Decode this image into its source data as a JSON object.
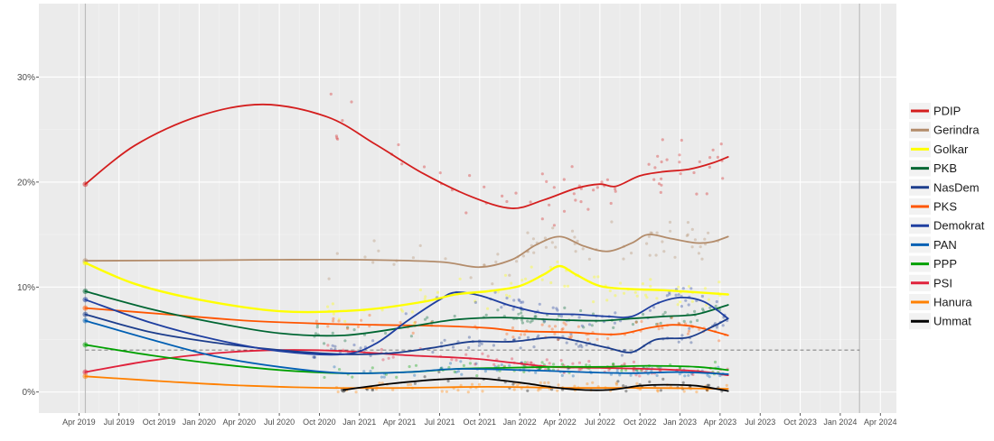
{
  "chart_data": {
    "type": "line",
    "title": "",
    "xlabel": "",
    "ylabel": "",
    "x_range_years": [
      2019.0,
      2024.35
    ],
    "y_range_percent": [
      -2,
      37
    ],
    "grid": true,
    "legend_position": "right",
    "x_ticks": [
      {
        "t": 2019.25,
        "label": "Apr 2019"
      },
      {
        "t": 2019.5,
        "label": "Jul 2019"
      },
      {
        "t": 2019.75,
        "label": "Oct 2019"
      },
      {
        "t": 2020.0,
        "label": "Jan 2020"
      },
      {
        "t": 2020.25,
        "label": "Apr 2020"
      },
      {
        "t": 2020.5,
        "label": "Jul 2020"
      },
      {
        "t": 2020.75,
        "label": "Oct 2020"
      },
      {
        "t": 2021.0,
        "label": "Jan 2021"
      },
      {
        "t": 2021.25,
        "label": "Apr 2021"
      },
      {
        "t": 2021.5,
        "label": "Jul 2021"
      },
      {
        "t": 2021.75,
        "label": "Oct 2021"
      },
      {
        "t": 2022.0,
        "label": "Jan 2022"
      },
      {
        "t": 2022.25,
        "label": "Apr 2022"
      },
      {
        "t": 2022.5,
        "label": "Jul 2022"
      },
      {
        "t": 2022.75,
        "label": "Oct 2022"
      },
      {
        "t": 2023.0,
        "label": "Jan 2023"
      },
      {
        "t": 2023.25,
        "label": "Apr 2023"
      },
      {
        "t": 2023.5,
        "label": "Jul 2023"
      },
      {
        "t": 2023.75,
        "label": "Oct 2023"
      },
      {
        "t": 2024.0,
        "label": "Jan 2024"
      },
      {
        "t": 2024.25,
        "label": "Apr 2024"
      }
    ],
    "y_ticks": [
      {
        "v": 0,
        "label": "0%"
      },
      {
        "v": 10,
        "label": "10%"
      },
      {
        "v": 20,
        "label": "20%"
      },
      {
        "v": 30,
        "label": "30%"
      }
    ],
    "vertical_markers": [
      2019.29,
      2024.12
    ],
    "threshold": {
      "value": 4,
      "style": "dashed"
    },
    "series": [
      {
        "name": "PDIP",
        "color": "#d41e1e",
        "points": [
          [
            2019.29,
            19.8
          ],
          [
            2019.6,
            23.5
          ],
          [
            2020.0,
            26.3
          ],
          [
            2020.4,
            27.4
          ],
          [
            2020.8,
            26.2
          ],
          [
            2021.1,
            23.6
          ],
          [
            2021.4,
            20.8
          ],
          [
            2021.7,
            18.6
          ],
          [
            2021.95,
            17.5
          ],
          [
            2022.15,
            18.3
          ],
          [
            2022.35,
            19.4
          ],
          [
            2022.5,
            19.8
          ],
          [
            2022.6,
            19.6
          ],
          [
            2022.75,
            20.6
          ],
          [
            2022.9,
            21.0
          ],
          [
            2023.05,
            21.2
          ],
          [
            2023.2,
            21.8
          ],
          [
            2023.3,
            22.4
          ]
        ]
      },
      {
        "name": "Gerindra",
        "color": "#b38c6b",
        "points": [
          [
            2019.29,
            12.5
          ],
          [
            2020.0,
            12.55
          ],
          [
            2020.5,
            12.6
          ],
          [
            2021.0,
            12.6
          ],
          [
            2021.5,
            12.4
          ],
          [
            2021.75,
            11.9
          ],
          [
            2021.95,
            12.6
          ],
          [
            2022.1,
            14.0
          ],
          [
            2022.25,
            14.8
          ],
          [
            2022.4,
            13.9
          ],
          [
            2022.55,
            13.4
          ],
          [
            2022.7,
            14.2
          ],
          [
            2022.8,
            15.0
          ],
          [
            2022.95,
            14.6
          ],
          [
            2023.1,
            14.2
          ],
          [
            2023.2,
            14.3
          ],
          [
            2023.3,
            14.8
          ]
        ]
      },
      {
        "name": "Golkar",
        "color": "#ffff00",
        "points": [
          [
            2019.29,
            12.3
          ],
          [
            2019.6,
            10.3
          ],
          [
            2020.0,
            8.8
          ],
          [
            2020.5,
            7.7
          ],
          [
            2021.0,
            7.8
          ],
          [
            2021.4,
            8.6
          ],
          [
            2021.6,
            9.3
          ],
          [
            2021.8,
            9.6
          ],
          [
            2022.0,
            10.1
          ],
          [
            2022.15,
            11.2
          ],
          [
            2022.25,
            12.0
          ],
          [
            2022.35,
            11.2
          ],
          [
            2022.5,
            10.1
          ],
          [
            2022.7,
            9.8
          ],
          [
            2022.9,
            9.7
          ],
          [
            2023.1,
            9.5
          ],
          [
            2023.3,
            9.3
          ]
        ]
      },
      {
        "name": "PKB",
        "color": "#006633",
        "points": [
          [
            2019.29,
            9.6
          ],
          [
            2019.7,
            7.9
          ],
          [
            2020.1,
            6.6
          ],
          [
            2020.5,
            5.6
          ],
          [
            2020.9,
            5.4
          ],
          [
            2021.3,
            6.2
          ],
          [
            2021.6,
            6.9
          ],
          [
            2021.9,
            7.1
          ],
          [
            2022.2,
            6.9
          ],
          [
            2022.5,
            6.8
          ],
          [
            2022.7,
            7.0
          ],
          [
            2022.9,
            7.2
          ],
          [
            2023.1,
            7.4
          ],
          [
            2023.3,
            8.3
          ]
        ]
      },
      {
        "name": "NasDem",
        "color": "#1c3d8c",
        "points": [
          [
            2019.29,
            7.4
          ],
          [
            2019.7,
            5.7
          ],
          [
            2020.1,
            4.7
          ],
          [
            2020.5,
            4.0
          ],
          [
            2020.9,
            3.6
          ],
          [
            2021.2,
            3.7
          ],
          [
            2021.45,
            4.2
          ],
          [
            2021.7,
            4.8
          ],
          [
            2021.95,
            4.8
          ],
          [
            2022.2,
            5.2
          ],
          [
            2022.35,
            4.9
          ],
          [
            2022.55,
            4.2
          ],
          [
            2022.7,
            3.8
          ],
          [
            2022.85,
            5.0
          ],
          [
            2023.05,
            5.2
          ],
          [
            2023.2,
            6.2
          ],
          [
            2023.3,
            7.0
          ]
        ]
      },
      {
        "name": "PKS",
        "color": "#ff5500",
        "points": [
          [
            2019.29,
            8.0
          ],
          [
            2019.8,
            7.4
          ],
          [
            2020.3,
            6.8
          ],
          [
            2020.8,
            6.5
          ],
          [
            2021.1,
            6.4
          ],
          [
            2021.5,
            6.3
          ],
          [
            2021.8,
            6.1
          ],
          [
            2022.0,
            5.8
          ],
          [
            2022.3,
            5.7
          ],
          [
            2022.6,
            5.5
          ],
          [
            2022.8,
            6.1
          ],
          [
            2022.95,
            6.4
          ],
          [
            2023.1,
            6.2
          ],
          [
            2023.3,
            5.4
          ]
        ]
      },
      {
        "name": "Demokrat",
        "color": "#1f3fa0",
        "points": [
          [
            2019.29,
            8.8
          ],
          [
            2019.7,
            6.6
          ],
          [
            2020.1,
            5.0
          ],
          [
            2020.5,
            3.9
          ],
          [
            2020.9,
            3.6
          ],
          [
            2021.1,
            4.6
          ],
          [
            2021.3,
            6.8
          ],
          [
            2021.5,
            8.8
          ],
          [
            2021.6,
            9.5
          ],
          [
            2021.75,
            9.2
          ],
          [
            2021.95,
            8.2
          ],
          [
            2022.15,
            7.5
          ],
          [
            2022.35,
            7.4
          ],
          [
            2022.55,
            7.2
          ],
          [
            2022.7,
            7.2
          ],
          [
            2022.85,
            8.4
          ],
          [
            2023.0,
            9.0
          ],
          [
            2023.15,
            8.6
          ],
          [
            2023.3,
            7.0
          ]
        ]
      },
      {
        "name": "PAN",
        "color": "#005fb3",
        "points": [
          [
            2019.29,
            6.8
          ],
          [
            2019.7,
            5.0
          ],
          [
            2020.1,
            3.4
          ],
          [
            2020.5,
            2.4
          ],
          [
            2020.9,
            1.8
          ],
          [
            2021.3,
            1.9
          ],
          [
            2021.6,
            2.2
          ],
          [
            2022.0,
            2.1
          ],
          [
            2022.4,
            1.9
          ],
          [
            2022.7,
            1.8
          ],
          [
            2023.0,
            1.9
          ],
          [
            2023.3,
            1.7
          ]
        ]
      },
      {
        "name": "PPP",
        "color": "#00a000",
        "points": [
          [
            2019.29,
            4.5
          ],
          [
            2019.7,
            3.5
          ],
          [
            2020.1,
            2.7
          ],
          [
            2020.5,
            2.1
          ],
          [
            2020.9,
            1.8
          ],
          [
            2021.3,
            1.9
          ],
          [
            2021.6,
            2.2
          ],
          [
            2021.9,
            2.3
          ],
          [
            2022.2,
            2.4
          ],
          [
            2022.5,
            2.4
          ],
          [
            2022.8,
            2.5
          ],
          [
            2023.1,
            2.4
          ],
          [
            2023.3,
            2.1
          ]
        ]
      },
      {
        "name": "PSI",
        "color": "#e0213b",
        "points": [
          [
            2019.29,
            1.9
          ],
          [
            2019.7,
            3.0
          ],
          [
            2020.1,
            3.7
          ],
          [
            2020.5,
            4.0
          ],
          [
            2020.9,
            3.9
          ],
          [
            2021.3,
            3.5
          ],
          [
            2021.7,
            3.2
          ],
          [
            2021.95,
            2.8
          ],
          [
            2022.2,
            2.4
          ],
          [
            2022.5,
            2.3
          ],
          [
            2022.8,
            2.2
          ],
          [
            2023.1,
            2.0
          ],
          [
            2023.3,
            1.6
          ]
        ]
      },
      {
        "name": "Hanura",
        "color": "#ff8000",
        "points": [
          [
            2019.29,
            1.5
          ],
          [
            2019.8,
            1.0
          ],
          [
            2020.3,
            0.6
          ],
          [
            2020.8,
            0.4
          ],
          [
            2021.3,
            0.4
          ],
          [
            2021.8,
            0.5
          ],
          [
            2022.3,
            0.4
          ],
          [
            2022.8,
            0.4
          ],
          [
            2023.3,
            0.3
          ]
        ]
      },
      {
        "name": "Ummat",
        "color": "#000000",
        "points": [
          [
            2020.9,
            0.2
          ],
          [
            2021.2,
            0.8
          ],
          [
            2021.5,
            1.2
          ],
          [
            2021.75,
            1.3
          ],
          [
            2022.0,
            0.9
          ],
          [
            2022.3,
            0.3
          ],
          [
            2022.55,
            0.2
          ],
          [
            2022.75,
            0.6
          ],
          [
            2022.9,
            0.7
          ],
          [
            2023.1,
            0.6
          ],
          [
            2023.3,
            0.1
          ]
        ]
      }
    ]
  }
}
